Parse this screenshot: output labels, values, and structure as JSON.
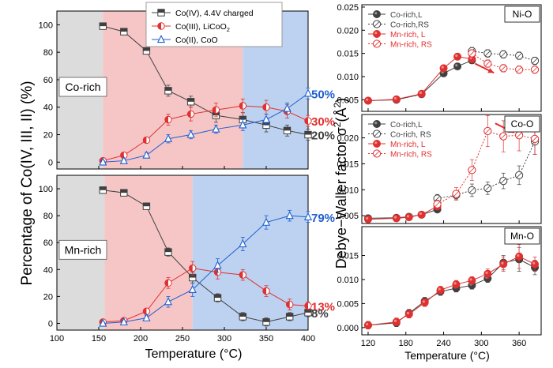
{
  "left_panels": {
    "y_axis_label": "Percentage of Co(IV, III, II) (%)",
    "x_axis_label": "Temperature (°C)",
    "legend": [
      {
        "label": "Co(IV), 4.4V charged",
        "color": "#404040",
        "marker": "square"
      },
      {
        "label": "Co(III), LiCoO",
        "sub": "2",
        "color": "#e03030",
        "marker": "circle"
      },
      {
        "label": "Co(II), CoO",
        "color": "#1f5fd0",
        "marker": "triangle"
      }
    ]
  },
  "right_panels": {
    "y_axis_label": "Debye−Waller factor σ",
    "y_axis_label_sup": "2",
    "y_axis_label_unit": "(Å",
    "y_axis_label_unit_sup": "2",
    "y_axis_label_close": ")",
    "x_axis_label": "Temperature (°C)"
  },
  "chart_data": [
    {
      "type": "line",
      "panel": "co-rich",
      "title": "Co-rich",
      "xlabel": "Temperature (°C)",
      "ylabel": "Percentage of Co(IV, III, II) (%)",
      "xlim": [
        100,
        400
      ],
      "ylim": [
        -5,
        110
      ],
      "xticks": [
        "100",
        "150",
        "200",
        "250",
        "300",
        "350",
        "400"
      ],
      "yticks": [
        "0",
        "20",
        "40",
        "60",
        "80",
        "100"
      ],
      "bands": [
        {
          "from": 100,
          "to": 155,
          "color": "#dcdcdc"
        },
        {
          "from": 155,
          "to": 322,
          "color": "#f6c6c6"
        },
        {
          "from": 322,
          "to": 400,
          "color": "#bcd2f0"
        }
      ],
      "x": [
        155,
        180,
        207,
        233,
        260,
        290,
        322,
        350,
        375,
        400
      ],
      "series": [
        {
          "name": "Co(IV), 4.4V charged",
          "color": "#404040",
          "marker": "square",
          "values": [
            99,
            95,
            81,
            52,
            44,
            34,
            31,
            27,
            23,
            20
          ],
          "errors": [
            2,
            2,
            2,
            4,
            4,
            5,
            5,
            5,
            4,
            4
          ]
        },
        {
          "name": "Co(III), LiCoO2",
          "color": "#e03030",
          "marker": "circle",
          "values": [
            1,
            5,
            16,
            31,
            35,
            38,
            41,
            40,
            37,
            30
          ],
          "errors": [
            1,
            2,
            2,
            4,
            5,
            5,
            5,
            5,
            5,
            4
          ]
        },
        {
          "name": "Co(II), CoO",
          "color": "#1f5fd0",
          "marker": "triangle",
          "values": [
            0,
            1,
            5,
            17,
            20,
            24,
            27,
            31,
            39,
            50
          ],
          "errors": [
            1,
            1,
            2,
            3,
            3,
            3,
            4,
            4,
            4,
            4
          ]
        }
      ],
      "end_labels": [
        {
          "text": "50%",
          "series": 2,
          "color": "#1f5fd0"
        },
        {
          "text": "30%",
          "series": 1,
          "color": "#e03030"
        },
        {
          "text": "20%",
          "series": 0,
          "color": "#404040"
        }
      ]
    },
    {
      "type": "line",
      "panel": "mn-rich",
      "title": "Mn-rich",
      "xlabel": "Temperature (°C)",
      "ylabel": "Percentage of Co(IV, III, II) (%)",
      "xlim": [
        100,
        400
      ],
      "ylim": [
        -5,
        110
      ],
      "xticks": [
        "100",
        "150",
        "200",
        "250",
        "300",
        "350",
        "400"
      ],
      "yticks": [
        "0",
        "20",
        "40",
        "60",
        "80",
        "100"
      ],
      "bands": [
        {
          "from": 100,
          "to": 157,
          "color": "#dcdcdc"
        },
        {
          "from": 157,
          "to": 262,
          "color": "#f6c6c6"
        },
        {
          "from": 262,
          "to": 400,
          "color": "#bcd2f0"
        }
      ],
      "x": [
        155,
        180,
        207,
        233,
        262,
        292,
        322,
        350,
        378,
        400
      ],
      "series": [
        {
          "name": "Co(IV), 4.4V charged",
          "color": "#404040",
          "marker": "square",
          "values": [
            99,
            97,
            87,
            53,
            34,
            19,
            5,
            1,
            5,
            8
          ],
          "errors": [
            2,
            2,
            2,
            3,
            4,
            3,
            3,
            3,
            3,
            3
          ]
        },
        {
          "name": "Co(III), LiCoO2",
          "color": "#e03030",
          "marker": "circle",
          "values": [
            1,
            2,
            9,
            30,
            41,
            38,
            36,
            24,
            14,
            13
          ],
          "errors": [
            1,
            1,
            2,
            4,
            5,
            5,
            4,
            4,
            4,
            3
          ]
        },
        {
          "name": "Co(II), CoO",
          "color": "#1f5fd0",
          "marker": "triangle",
          "values": [
            0,
            1,
            4,
            16,
            25,
            43,
            59,
            75,
            80,
            79
          ],
          "errors": [
            1,
            1,
            2,
            4,
            5,
            5,
            5,
            5,
            4,
            4
          ]
        }
      ],
      "end_labels": [
        {
          "text": "79%",
          "series": 2,
          "color": "#1f5fd0"
        },
        {
          "text": "13%",
          "series": 1,
          "color": "#e03030"
        },
        {
          "text": "8%",
          "series": 0,
          "color": "#404040"
        }
      ]
    },
    {
      "type": "line",
      "panel": "ni-o",
      "title": "Ni-O",
      "xlim": [
        110,
        395
      ],
      "ylim": [
        0.0025,
        0.0255
      ],
      "yticks": [
        "0.005",
        "0.010",
        "0.015",
        "0.020",
        "0.025"
      ],
      "legend": [
        {
          "label": "Co-rich,L",
          "color": "#404040",
          "marker": "filled",
          "line": "solid"
        },
        {
          "label": "Co-rich,RS",
          "color": "#404040",
          "marker": "open",
          "line": "dotted"
        },
        {
          "label": "Mn-rich, L",
          "color": "#e03030",
          "marker": "filled",
          "line": "solid"
        },
        {
          "label": "Mn-rich, RS",
          "color": "#e03030",
          "marker": "open",
          "line": "dotted"
        }
      ],
      "series": [
        {
          "name": "Co-rich,L",
          "color": "#404040",
          "fill": "filled",
          "dash": "",
          "x": [
            120,
            165,
            205,
            240,
            262,
            285
          ],
          "values": [
            0.0048,
            0.005,
            0.0062,
            0.0107,
            0.0122,
            0.0135
          ],
          "errors": [
            0.0003,
            0.0003,
            0.0004,
            0.0006,
            0.0006,
            0.0007
          ]
        },
        {
          "name": "Co-rich,RS",
          "color": "#404040",
          "fill": "open",
          "dash": "2,2",
          "x": [
            285,
            310,
            335,
            360,
            385
          ],
          "values": [
            0.0155,
            0.015,
            0.0148,
            0.0145,
            0.0134
          ],
          "errors": [
            0.0008,
            0.0008,
            0.0008,
            0.0008,
            0.0008
          ]
        },
        {
          "name": "Mn-rich, L",
          "color": "#e03030",
          "fill": "filled",
          "dash": "",
          "x": [
            120,
            165,
            205,
            240,
            262,
            285
          ],
          "values": [
            0.0048,
            0.0051,
            0.0063,
            0.0118,
            0.0143,
            0.0138
          ],
          "errors": [
            0.0003,
            0.0003,
            0.0004,
            0.0006,
            0.0007,
            0.0008
          ]
        },
        {
          "name": "Mn-rich, RS",
          "color": "#e03030",
          "fill": "open",
          "dash": "2,2",
          "x": [
            285,
            310,
            335,
            360,
            385
          ],
          "values": [
            0.015,
            0.0128,
            0.0118,
            0.0115,
            0.0115
          ],
          "errors": [
            0.0008,
            0.0008,
            0.0008,
            0.0008,
            0.0008
          ]
        }
      ],
      "arrow": {
        "from": [
          290,
          0.0128
        ],
        "to": [
          320,
          0.0108
        ],
        "color": "#e03030"
      }
    },
    {
      "type": "line",
      "panel": "co-o",
      "title": "Co-O",
      "xlim": [
        110,
        395
      ],
      "ylim": [
        0.0035,
        0.0245
      ],
      "yticks": [
        "0.005",
        "0.010",
        "0.015",
        "0.020"
      ],
      "legend": [
        {
          "label": "Co-rich,L",
          "color": "#404040",
          "marker": "filled",
          "line": "solid"
        },
        {
          "label": "Co-rich, RS",
          "color": "#404040",
          "marker": "open",
          "line": "dotted"
        },
        {
          "label": "Mn-rich, L",
          "color": "#e03030",
          "marker": "filled",
          "line": "solid"
        },
        {
          "label": "Mn-rich, RS",
          "color": "#e03030",
          "marker": "open",
          "line": "dotted"
        }
      ],
      "series": [
        {
          "name": "Co-rich,L",
          "color": "#404040",
          "fill": "filled",
          "dash": "",
          "x": [
            120,
            165,
            185,
            205,
            230
          ],
          "values": [
            0.0045,
            0.0046,
            0.0048,
            0.0052,
            0.0062
          ],
          "errors": [
            0.0004,
            0.0004,
            0.0004,
            0.0004,
            0.0005
          ]
        },
        {
          "name": "Co-rich, RS",
          "color": "#404040",
          "fill": "open",
          "dash": "2,2",
          "x": [
            230,
            260,
            285,
            310,
            335,
            360,
            385
          ],
          "values": [
            0.0083,
            0.009,
            0.0099,
            0.0103,
            0.0117,
            0.0128,
            0.0193
          ],
          "errors": [
            0.0008,
            0.0008,
            0.0012,
            0.0012,
            0.0015,
            0.0018,
            0.0025
          ]
        },
        {
          "name": "Mn-rich, L",
          "color": "#e03030",
          "fill": "filled",
          "dash": "",
          "x": [
            120,
            165,
            185,
            205,
            230
          ],
          "values": [
            0.0043,
            0.0045,
            0.0047,
            0.0052,
            0.0068
          ],
          "errors": [
            0.0004,
            0.0004,
            0.0004,
            0.0004,
            0.0006
          ]
        },
        {
          "name": "Mn-rich, RS",
          "color": "#e03030",
          "fill": "open",
          "dash": "2,2",
          "x": [
            230,
            260,
            285,
            310,
            335,
            360,
            385
          ],
          "values": [
            0.0072,
            0.0092,
            0.0138,
            0.0213,
            0.0203,
            0.0205,
            0.0198
          ],
          "errors": [
            0.0008,
            0.0012,
            0.002,
            0.003,
            0.003,
            0.003,
            0.003
          ]
        }
      ],
      "arrow": {
        "from": [
          322,
          0.0228
        ],
        "to": [
          352,
          0.021
        ],
        "color": "#e03030"
      }
    },
    {
      "type": "line",
      "panel": "mn-o",
      "title": "Mn-O",
      "xlabel": "Temperature (°C)",
      "xlim": [
        110,
        395
      ],
      "ylim": [
        -0.0015,
        0.021
      ],
      "xticks": [
        "120",
        "180",
        "240",
        "300",
        "360"
      ],
      "yticks": [
        "0.000",
        "0.005",
        "0.010",
        "0.015"
      ],
      "series": [
        {
          "name": "Co-rich,L",
          "color": "#404040",
          "fill": "filled",
          "dash": "",
          "x": [
            120,
            165,
            185,
            210,
            235,
            260,
            285,
            310,
            335,
            360,
            385
          ],
          "values": [
            0.0005,
            0.001,
            0.003,
            0.0055,
            0.0075,
            0.0082,
            0.0088,
            0.0102,
            0.0135,
            0.0142,
            0.0125
          ],
          "errors": [
            0.0008,
            0.0008,
            0.0008,
            0.0008,
            0.0008,
            0.0008,
            0.0008,
            0.0008,
            0.0015,
            0.0025,
            0.0015
          ]
        },
        {
          "name": "Mn-rich, L",
          "color": "#e03030",
          "fill": "filled",
          "dash": "",
          "x": [
            120,
            165,
            185,
            210,
            235,
            260,
            285,
            310,
            335,
            360,
            385
          ],
          "values": [
            0.0005,
            0.0012,
            0.0028,
            0.0052,
            0.0078,
            0.009,
            0.0098,
            0.0112,
            0.0132,
            0.0148,
            0.0132
          ],
          "errors": [
            0.0008,
            0.0008,
            0.0008,
            0.0008,
            0.0008,
            0.0008,
            0.0008,
            0.001,
            0.0015,
            0.0025,
            0.0015
          ]
        }
      ]
    }
  ]
}
